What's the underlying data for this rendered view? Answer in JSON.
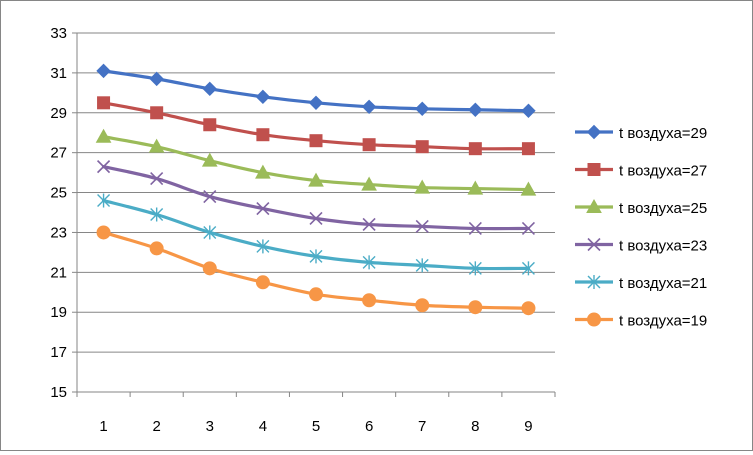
{
  "chart_data": {
    "type": "line",
    "title": "",
    "xlabel": "",
    "ylabel": "",
    "x": [
      1,
      2,
      3,
      4,
      5,
      6,
      7,
      8,
      9
    ],
    "ylim": [
      15,
      33
    ],
    "yticks": [
      15,
      17,
      19,
      21,
      23,
      25,
      27,
      29,
      31,
      33
    ],
    "grid": "horizontal",
    "legend_position": "right",
    "series": [
      {
        "name": "t воздуха=29",
        "color": "#4472C4",
        "marker": "diamond",
        "values": [
          31.1,
          30.7,
          30.2,
          29.8,
          29.5,
          29.3,
          29.2,
          29.15,
          29.1
        ]
      },
      {
        "name": "t воздуха=27",
        "color": "#C0504D",
        "marker": "square",
        "values": [
          29.5,
          29.0,
          28.4,
          27.9,
          27.6,
          27.4,
          27.3,
          27.2,
          27.2
        ]
      },
      {
        "name": "t воздуха=25",
        "color": "#9BBB59",
        "marker": "triangle",
        "values": [
          27.8,
          27.3,
          26.6,
          26.0,
          25.6,
          25.4,
          25.25,
          25.2,
          25.15
        ]
      },
      {
        "name": "t воздуха=23",
        "color": "#8064A2",
        "marker": "x",
        "values": [
          26.3,
          25.7,
          24.8,
          24.2,
          23.7,
          23.4,
          23.3,
          23.2,
          23.2
        ]
      },
      {
        "name": "t воздуха=21",
        "color": "#4BACC6",
        "marker": "star",
        "values": [
          24.6,
          23.9,
          23.0,
          22.3,
          21.8,
          21.5,
          21.35,
          21.2,
          21.2
        ]
      },
      {
        "name": "t воздуха=19",
        "color": "#F79646",
        "marker": "circle",
        "values": [
          23.0,
          22.2,
          21.2,
          20.5,
          19.9,
          19.6,
          19.35,
          19.25,
          19.2
        ]
      }
    ]
  }
}
